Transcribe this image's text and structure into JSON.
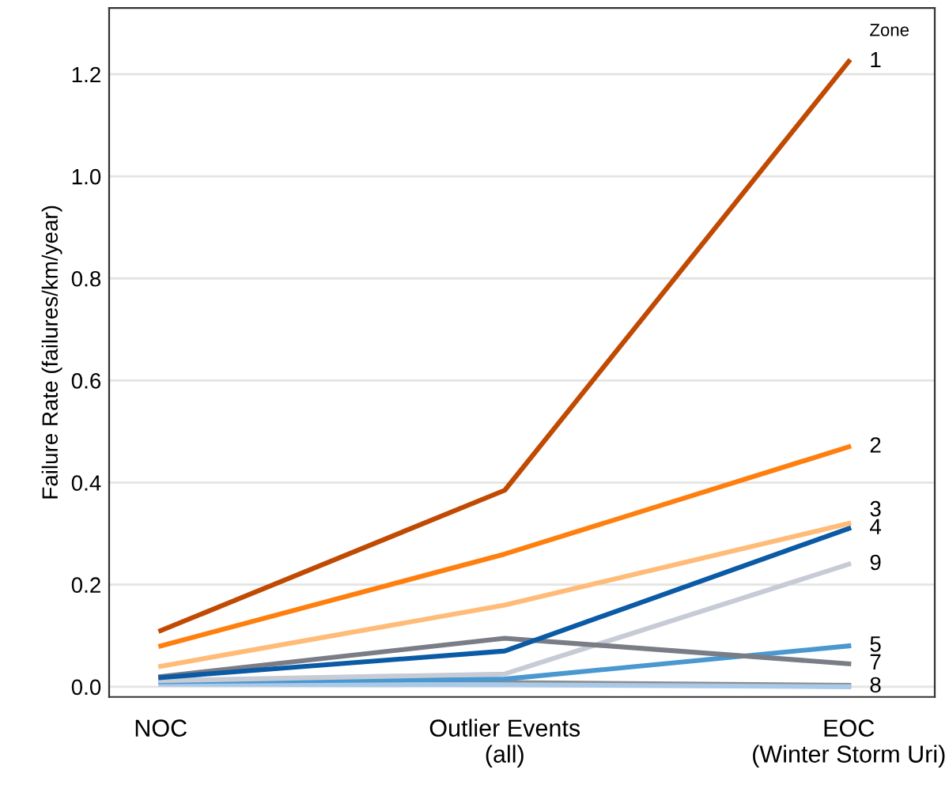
{
  "chart_data": {
    "type": "line",
    "ylabel": "Failure Rate (failures/km/year)",
    "legend_title": "Zone",
    "categories": [
      "NOC",
      "Outlier Events\n(all)",
      "EOC\n(Winter Storm Uri)"
    ],
    "ylim": [
      -0.02,
      1.33
    ],
    "yticks": [
      {
        "value": 0,
        "label": "0.0"
      },
      0.2,
      0.4,
      0.6,
      0.8,
      {
        "value": 1,
        "label": "1.0"
      },
      1.2
    ],
    "grid": "y",
    "legend": false,
    "marker": "none",
    "line_style": "solid",
    "series": [
      {
        "color": "#8c8c8c",
        "values": [
          0.01,
          0.008,
          0.003
        ]
      },
      {
        "name": "8",
        "color": "#a9c9e8",
        "values": [
          0.005,
          0.004,
          0.0
        ]
      },
      {
        "name": "5",
        "color": "#4a98d0",
        "values": [
          0.01,
          0.015,
          0.08
        ]
      },
      {
        "name": "9",
        "color": "#c7cbd6",
        "values": [
          0.012,
          0.025,
          0.24
        ]
      },
      {
        "name": "7",
        "color": "#7a7d85",
        "values": [
          0.02,
          0.095,
          0.045
        ]
      },
      {
        "name": "4",
        "color": "#0b5aa5",
        "values": [
          0.018,
          0.07,
          0.31
        ]
      },
      {
        "name": "3",
        "color": "#ffbb78",
        "values": [
          0.04,
          0.16,
          0.32
        ]
      },
      {
        "name": "2",
        "color": "#ff7f0e",
        "values": [
          0.08,
          0.26,
          0.47
        ]
      },
      {
        "name": "1",
        "color": "#c04a02",
        "values": [
          0.11,
          0.385,
          1.225
        ]
      }
    ]
  }
}
